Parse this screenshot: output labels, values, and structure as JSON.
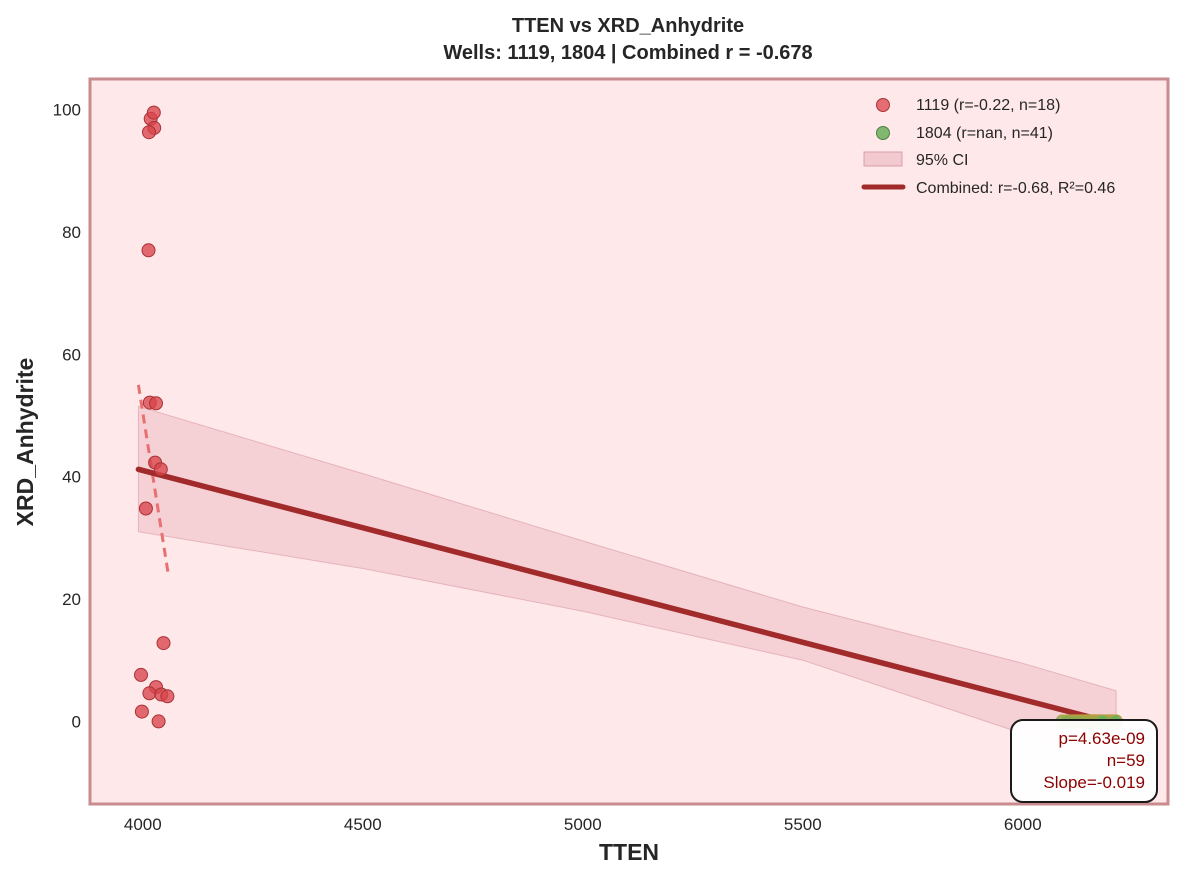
{
  "chart_data": {
    "type": "scatter",
    "title_line1": "TTEN vs XRD_Anhydrite",
    "title_line2": "Wells: 1119, 1804 | Combined r = -0.678",
    "xlabel": "TTEN",
    "ylabel": "XRD_Anhydrite",
    "xlim": [
      3880,
      6330
    ],
    "ylim": [
      -13.5,
      105
    ],
    "xticks": [
      4000,
      4500,
      5000,
      5500,
      6000
    ],
    "yticks": [
      0,
      20,
      40,
      60,
      80,
      100
    ],
    "grid": false,
    "legend_position": "top-right",
    "series": [
      {
        "name": "1119 (r=-0.22, n=18)",
        "color": "#d9444a",
        "points": [
          [
            4018,
            98.5
          ],
          [
            4025,
            99.5
          ],
          [
            4026,
            97.0
          ],
          [
            4014,
            96.3
          ],
          [
            4013,
            77.0
          ],
          [
            4016,
            52.1
          ],
          [
            4030,
            52.0
          ],
          [
            4028,
            42.3
          ],
          [
            4041,
            41.2
          ],
          [
            4007,
            34.8
          ],
          [
            4047,
            12.8
          ],
          [
            3996,
            7.6
          ],
          [
            4030,
            5.6
          ],
          [
            4015,
            4.6
          ],
          [
            4042,
            4.4
          ],
          [
            4056,
            4.1
          ],
          [
            3998,
            1.6
          ],
          [
            4036,
            0.0
          ]
        ]
      },
      {
        "name": "1804 (r=nan, n=41)",
        "color": "#6aaf5a",
        "points": [
          [
            6090,
            0
          ],
          [
            6100,
            0
          ],
          [
            6110,
            0
          ],
          [
            6118,
            0
          ],
          [
            6125,
            0
          ],
          [
            6130,
            0
          ],
          [
            6136,
            0
          ],
          [
            6142,
            0
          ],
          [
            6148,
            0
          ],
          [
            6152,
            0
          ],
          [
            6156,
            0
          ],
          [
            6160,
            0
          ],
          [
            6164,
            0
          ],
          [
            6168,
            0
          ],
          [
            6172,
            0
          ],
          [
            6176,
            0
          ],
          [
            6180,
            0
          ],
          [
            6184,
            0
          ],
          [
            6188,
            0
          ],
          [
            6192,
            0
          ],
          [
            6196,
            0
          ],
          [
            6200,
            0
          ],
          [
            6204,
            0
          ],
          [
            6208,
            0
          ],
          [
            6212,
            0
          ],
          [
            6105,
            0
          ],
          [
            6115,
            0
          ],
          [
            6122,
            0
          ],
          [
            6128,
            0
          ],
          [
            6134,
            0
          ],
          [
            6140,
            0
          ],
          [
            6146,
            0
          ],
          [
            6150,
            0
          ],
          [
            6154,
            0
          ],
          [
            6158,
            0
          ],
          [
            6162,
            0
          ],
          [
            6166,
            0
          ],
          [
            6170,
            0
          ],
          [
            6174,
            0
          ],
          [
            6178,
            0
          ],
          [
            6182,
            0
          ]
        ]
      }
    ],
    "well_fit_1119": {
      "color": "#e87070",
      "x": [
        3990,
        4058
      ],
      "y": [
        55.0,
        24.0
      ]
    },
    "combined_fit": {
      "name": "Combined: r=-0.68, R²=0.46",
      "color": "#a12a2a",
      "x": [
        3990,
        6212
      ],
      "y": [
        41.2,
        -0.4
      ]
    },
    "ci_band": {
      "name": "95% CI",
      "color": "#e8b4bc",
      "x": [
        3990,
        4500,
        5000,
        5500,
        6000,
        6212
      ],
      "upper": [
        51.5,
        40.5,
        29.5,
        18.7,
        9.5,
        5.0
      ],
      "lower": [
        31.0,
        25.0,
        18.0,
        10.0,
        -2.0,
        -6.0
      ]
    },
    "stats_box": {
      "line1": "p=4.63e-09",
      "line2": "n=59",
      "line3": "Slope=-0.019"
    },
    "background_color": "#ffe8ea",
    "frame_color": "#c98b8e"
  }
}
